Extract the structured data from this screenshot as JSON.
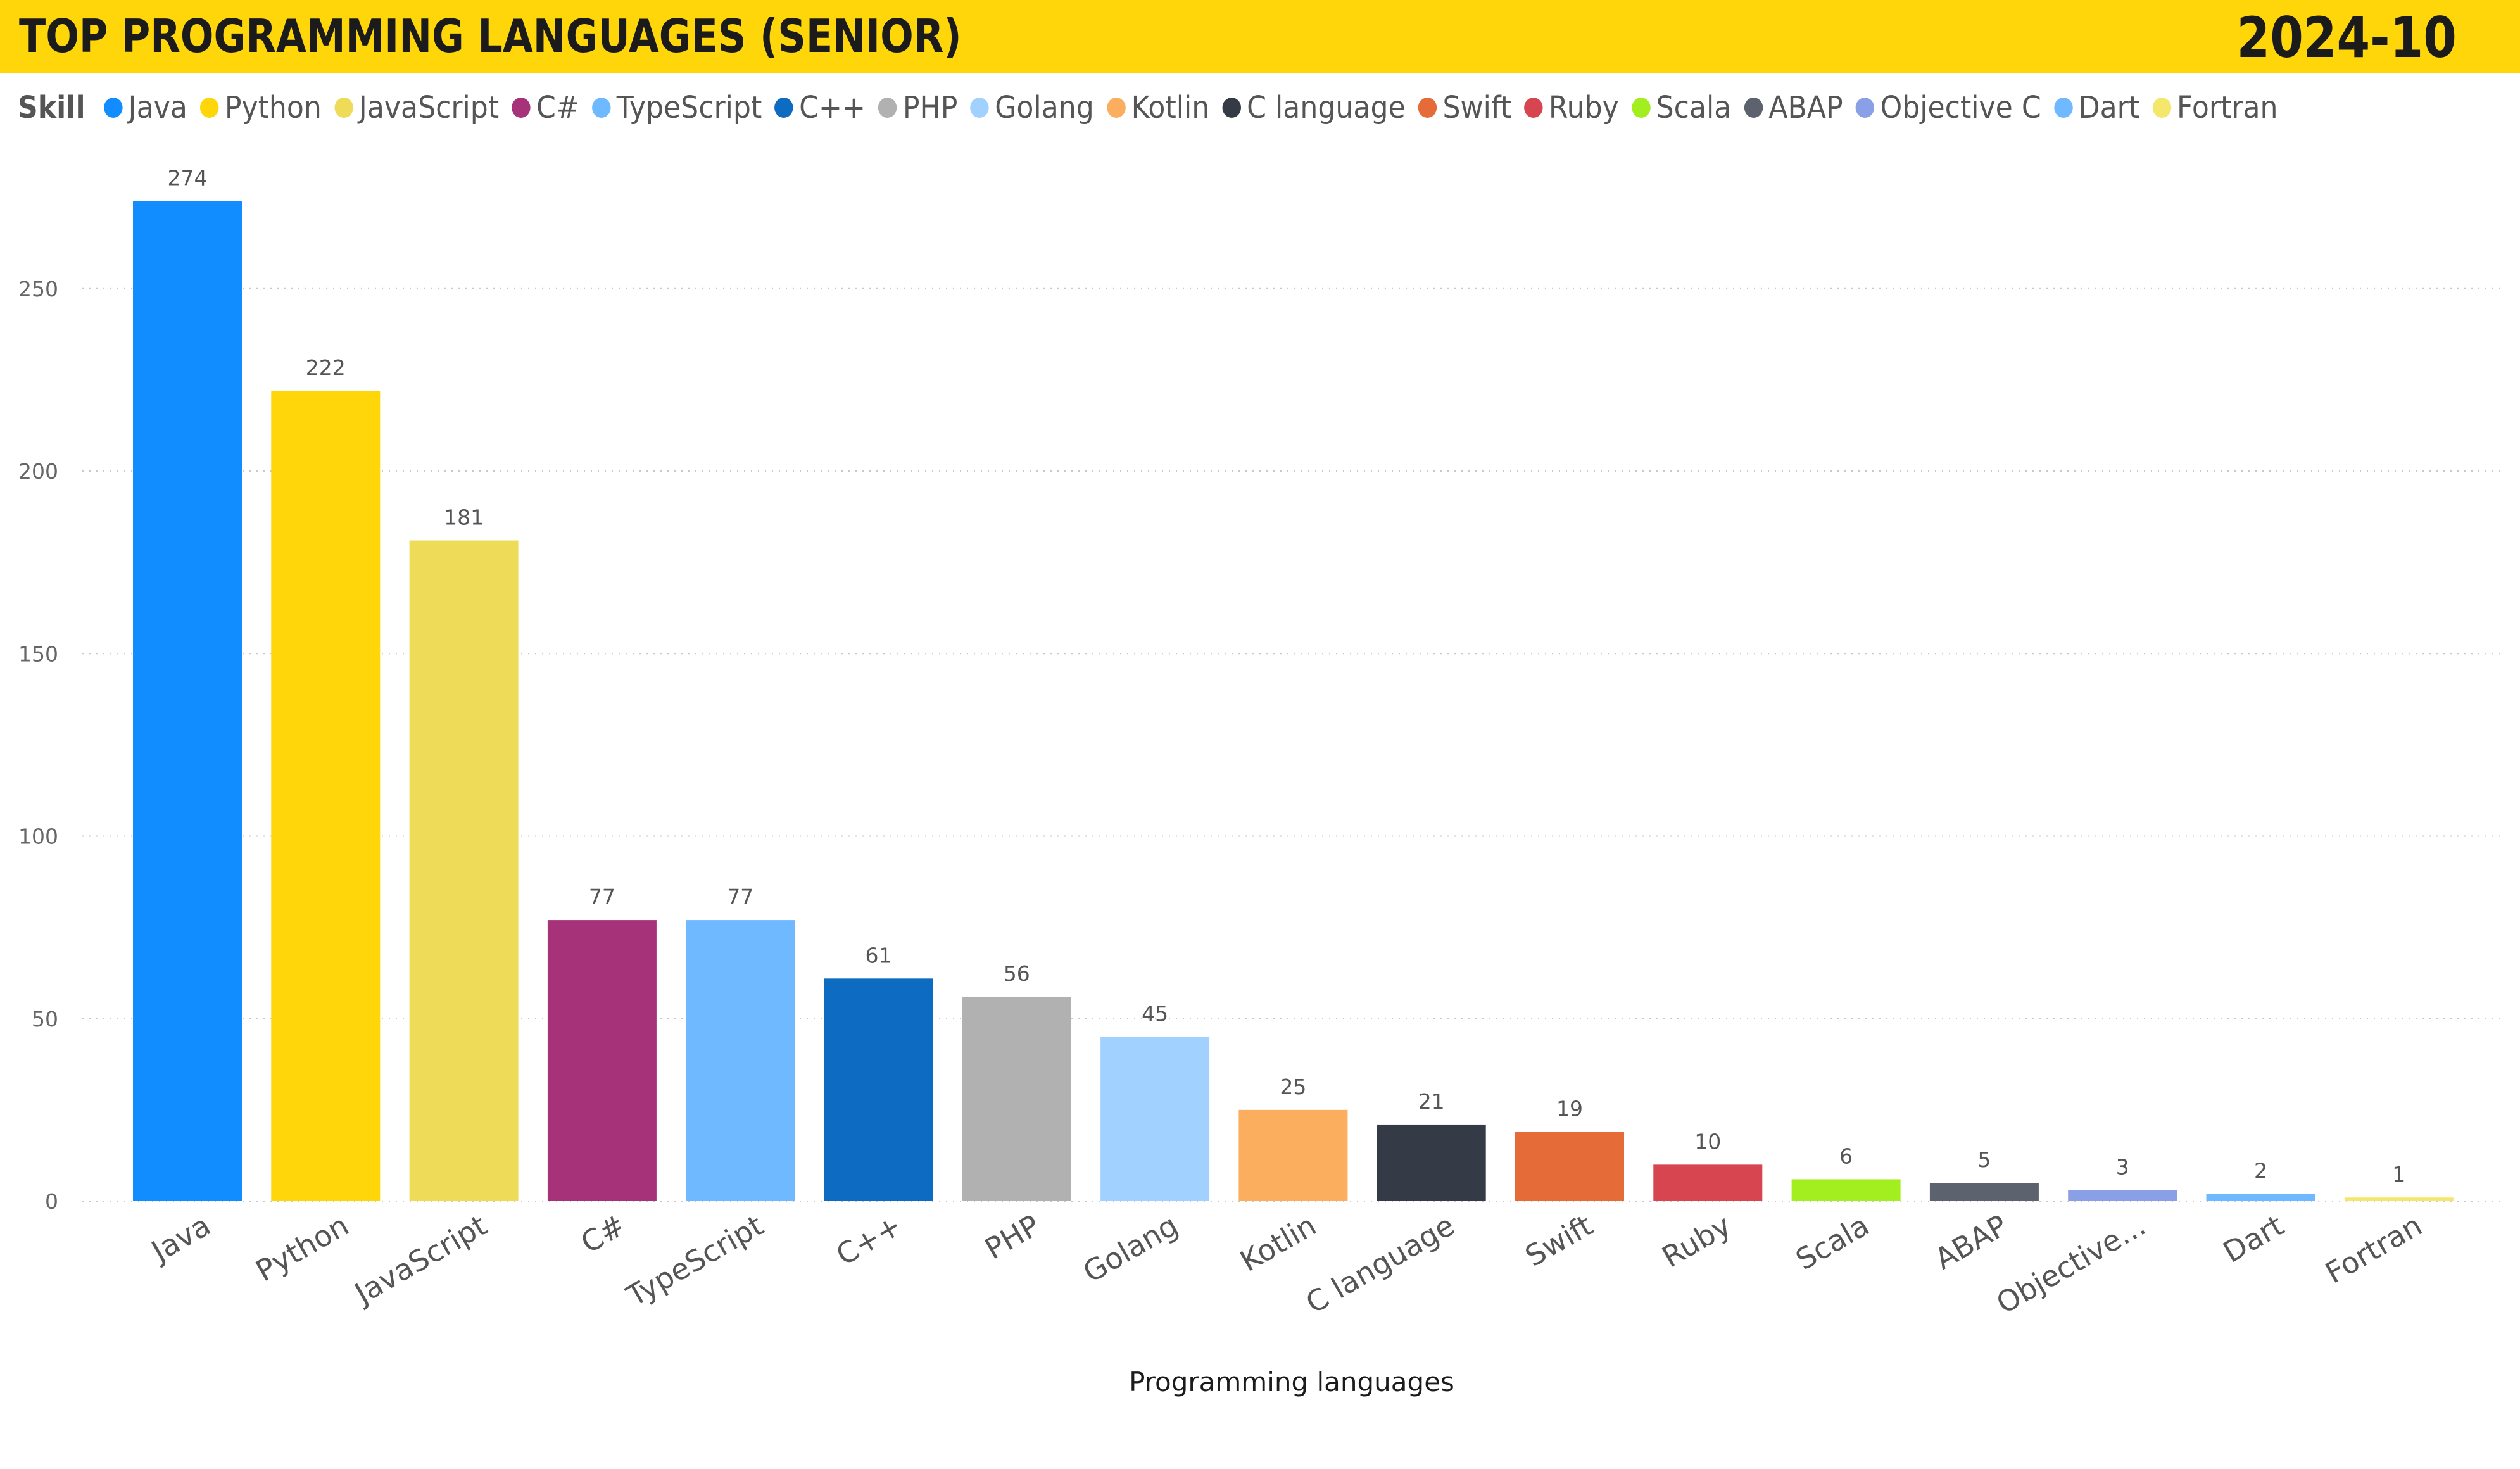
{
  "header": {
    "title": "TOP PROGRAMMING LANGUAGES (SENIOR)",
    "period": "2024-10"
  },
  "legend": {
    "title": "Skill"
  },
  "chart_data": {
    "type": "bar",
    "title": "TOP PROGRAMMING LANGUAGES (SENIOR)",
    "xlabel": "Programming languages",
    "ylabel": "",
    "ylim": [
      0,
      290
    ],
    "yticks": [
      0,
      50,
      100,
      150,
      200,
      250
    ],
    "grid": true,
    "legend_position": "top-left",
    "categories": [
      "Java",
      "Python",
      "JavaScript",
      "C#",
      "TypeScript",
      "C++",
      "PHP",
      "Golang",
      "Kotlin",
      "C language",
      "Swift",
      "Ruby",
      "Scala",
      "ABAP",
      "Objective C",
      "Dart",
      "Fortran"
    ],
    "category_tick_labels": [
      "Java",
      "Python",
      "JavaScript",
      "C#",
      "TypeScript",
      "C++",
      "PHP",
      "Golang",
      "Kotlin",
      "C language",
      "Swift",
      "Ruby",
      "Scala",
      "ABAP",
      "Objective...",
      "Dart",
      "Fortran"
    ],
    "values": [
      274,
      222,
      181,
      77,
      77,
      61,
      56,
      45,
      25,
      21,
      19,
      10,
      6,
      5,
      3,
      2,
      1
    ],
    "colors": [
      "#118DFF",
      "#FFD60A",
      "#EEDC58",
      "#A6337A",
      "#6EB9FF",
      "#0E6BC2",
      "#B1B1B1",
      "#A1D1FF",
      "#FBAF5E",
      "#343A46",
      "#E56C38",
      "#D64550",
      "#A2EE1E",
      "#5D636E",
      "#8AA0E6",
      "#6EB9FF",
      "#F5E66C"
    ]
  }
}
